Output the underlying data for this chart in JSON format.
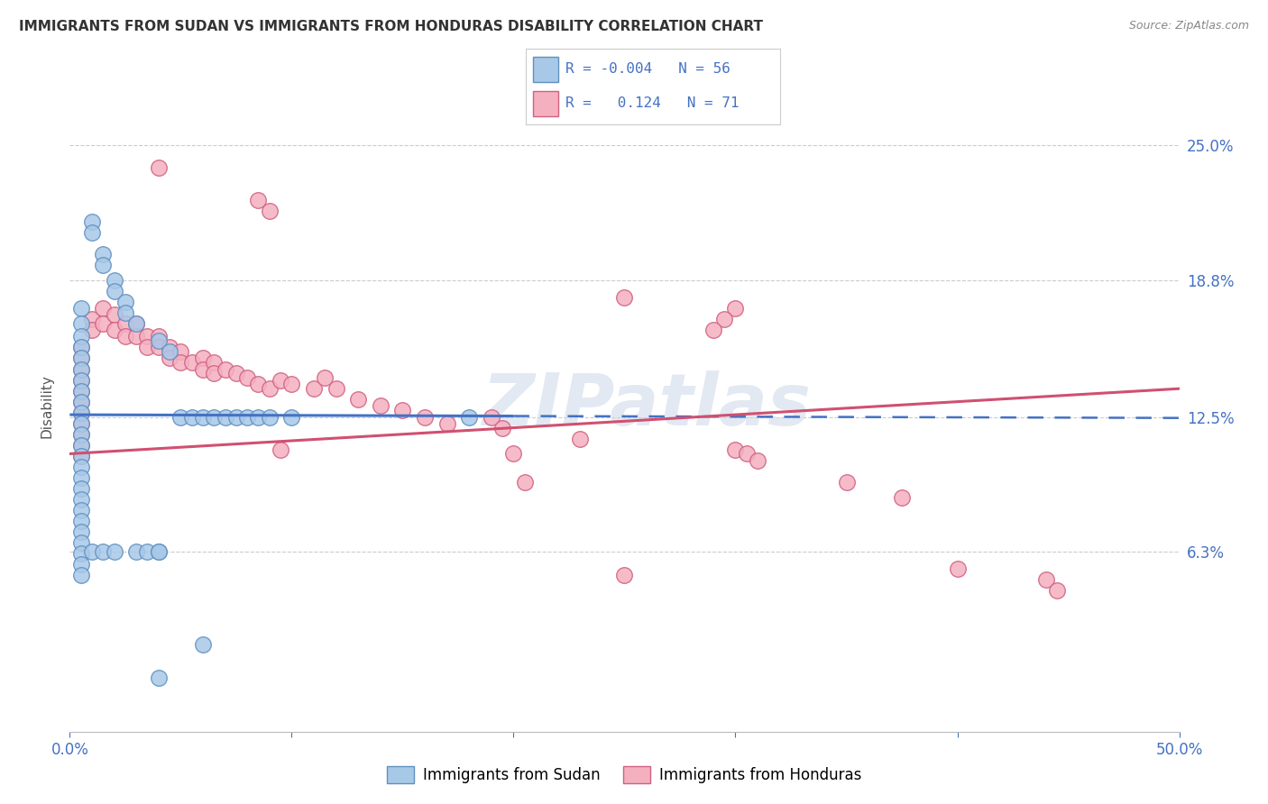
{
  "title": "IMMIGRANTS FROM SUDAN VS IMMIGRANTS FROM HONDURAS DISABILITY CORRELATION CHART",
  "source": "Source: ZipAtlas.com",
  "ylabel_label": "Disability",
  "xlim": [
    0.0,
    0.5
  ],
  "ylim": [
    -0.02,
    0.28
  ],
  "ytick_vals": [
    0.063,
    0.125,
    0.188,
    0.25
  ],
  "ytick_labels": [
    "6.3%",
    "12.5%",
    "18.8%",
    "25.0%"
  ],
  "xtick_vals": [
    0.0,
    0.1,
    0.2,
    0.3,
    0.4,
    0.5
  ],
  "xtick_labels": [
    "0.0%",
    "",
    "",
    "",
    "",
    "50.0%"
  ],
  "legend_sudan_r": "R = -0.004",
  "legend_sudan_n": "N = 56",
  "legend_honduras_r": "R =   0.124",
  "legend_honduras_n": "N = 71",
  "sudan_color": "#a8c8e8",
  "honduras_color": "#f5b0c0",
  "sudan_edge": "#6090c0",
  "honduras_edge": "#d06080",
  "watermark": "ZIPatlas",
  "sudan_line_color": "#4472C4",
  "honduras_line_color": "#d05070",
  "sudan_line_solid_end": 0.2,
  "sudan_line_intercept": 0.126,
  "sudan_line_slope": -0.003,
  "honduras_line_intercept": 0.108,
  "honduras_line_slope": 0.06,
  "sudan_scatter_x": [
    0.005,
    0.005,
    0.005,
    0.005,
    0.005,
    0.005,
    0.005,
    0.005,
    0.005,
    0.005,
    0.005,
    0.005,
    0.005,
    0.005,
    0.005,
    0.005,
    0.005,
    0.005,
    0.005,
    0.005,
    0.005,
    0.005,
    0.005,
    0.005,
    0.005,
    0.01,
    0.01,
    0.01,
    0.015,
    0.015,
    0.015,
    0.02,
    0.02,
    0.02,
    0.025,
    0.025,
    0.03,
    0.03,
    0.035,
    0.04,
    0.04,
    0.045,
    0.05,
    0.055,
    0.06,
    0.065,
    0.07,
    0.075,
    0.08,
    0.085,
    0.09,
    0.1,
    0.18,
    0.04,
    0.06,
    0.04
  ],
  "sudan_scatter_y": [
    0.175,
    0.168,
    0.162,
    0.157,
    0.152,
    0.147,
    0.142,
    0.137,
    0.132,
    0.127,
    0.122,
    0.117,
    0.112,
    0.107,
    0.102,
    0.097,
    0.092,
    0.087,
    0.082,
    0.077,
    0.072,
    0.067,
    0.062,
    0.057,
    0.052,
    0.215,
    0.21,
    0.063,
    0.2,
    0.195,
    0.063,
    0.188,
    0.183,
    0.063,
    0.178,
    0.173,
    0.168,
    0.063,
    0.063,
    0.16,
    0.063,
    0.155,
    0.125,
    0.125,
    0.125,
    0.125,
    0.125,
    0.125,
    0.125,
    0.125,
    0.125,
    0.125,
    0.125,
    0.063,
    0.02,
    0.005
  ],
  "honduras_scatter_x": [
    0.005,
    0.005,
    0.005,
    0.005,
    0.005,
    0.005,
    0.005,
    0.005,
    0.005,
    0.005,
    0.005,
    0.01,
    0.01,
    0.015,
    0.015,
    0.02,
    0.02,
    0.025,
    0.025,
    0.03,
    0.03,
    0.035,
    0.035,
    0.04,
    0.04,
    0.045,
    0.045,
    0.05,
    0.05,
    0.055,
    0.06,
    0.06,
    0.065,
    0.065,
    0.07,
    0.075,
    0.08,
    0.085,
    0.09,
    0.095,
    0.1,
    0.11,
    0.115,
    0.12,
    0.13,
    0.14,
    0.15,
    0.16,
    0.17,
    0.04,
    0.085,
    0.09,
    0.095,
    0.2,
    0.205,
    0.3,
    0.305,
    0.31,
    0.35,
    0.375,
    0.4,
    0.25,
    0.44,
    0.445,
    0.25,
    0.3,
    0.295,
    0.29,
    0.19,
    0.195,
    0.23
  ],
  "honduras_scatter_y": [
    0.157,
    0.152,
    0.147,
    0.142,
    0.137,
    0.132,
    0.127,
    0.122,
    0.117,
    0.112,
    0.107,
    0.17,
    0.165,
    0.175,
    0.168,
    0.172,
    0.165,
    0.168,
    0.162,
    0.168,
    0.162,
    0.162,
    0.157,
    0.162,
    0.157,
    0.157,
    0.152,
    0.155,
    0.15,
    0.15,
    0.152,
    0.147,
    0.15,
    0.145,
    0.147,
    0.145,
    0.143,
    0.14,
    0.138,
    0.142,
    0.14,
    0.138,
    0.143,
    0.138,
    0.133,
    0.13,
    0.128,
    0.125,
    0.122,
    0.24,
    0.225,
    0.22,
    0.11,
    0.108,
    0.095,
    0.11,
    0.108,
    0.105,
    0.095,
    0.088,
    0.055,
    0.052,
    0.05,
    0.045,
    0.18,
    0.175,
    0.17,
    0.165,
    0.125,
    0.12,
    0.115
  ]
}
